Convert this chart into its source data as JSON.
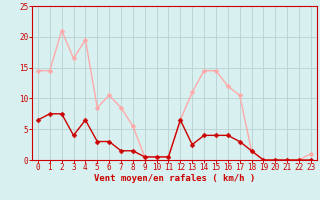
{
  "hours": [
    0,
    1,
    2,
    3,
    4,
    5,
    6,
    7,
    8,
    9,
    10,
    11,
    12,
    13,
    14,
    15,
    16,
    17,
    18,
    19,
    20,
    21,
    22,
    23
  ],
  "wind_avg": [
    6.5,
    7.5,
    7.5,
    4.0,
    6.5,
    3.0,
    3.0,
    1.5,
    1.5,
    0.5,
    0.5,
    0.5,
    6.5,
    2.5,
    4.0,
    4.0,
    4.0,
    3.0,
    1.5,
    0.0,
    0.0,
    0.0,
    0.0,
    0.0
  ],
  "wind_gust": [
    14.5,
    14.5,
    21.0,
    16.5,
    19.5,
    8.5,
    10.5,
    8.5,
    5.5,
    0.5,
    0.5,
    0.5,
    6.5,
    11.0,
    14.5,
    14.5,
    12.0,
    10.5,
    1.5,
    0.0,
    0.0,
    0.0,
    0.0,
    1.0
  ],
  "avg_color": "#cc0000",
  "gust_color": "#ffaaaa",
  "bg_color": "#d8f0f0",
  "grid_color": "#b8d0d0",
  "axis_color": "#cc0000",
  "tick_color": "#cc0000",
  "xlabel": "Vent moyen/en rafales ( km/h )",
  "ylim": [
    0,
    25
  ],
  "yticks": [
    0,
    5,
    10,
    15,
    20,
    25
  ],
  "xticks": [
    0,
    1,
    2,
    3,
    4,
    5,
    6,
    7,
    8,
    9,
    10,
    11,
    12,
    13,
    14,
    15,
    16,
    17,
    18,
    19,
    20,
    21,
    22,
    23
  ],
  "marker_size": 2.5,
  "line_width": 1.0,
  "tick_fontsize": 5.5,
  "xlabel_fontsize": 6.5
}
